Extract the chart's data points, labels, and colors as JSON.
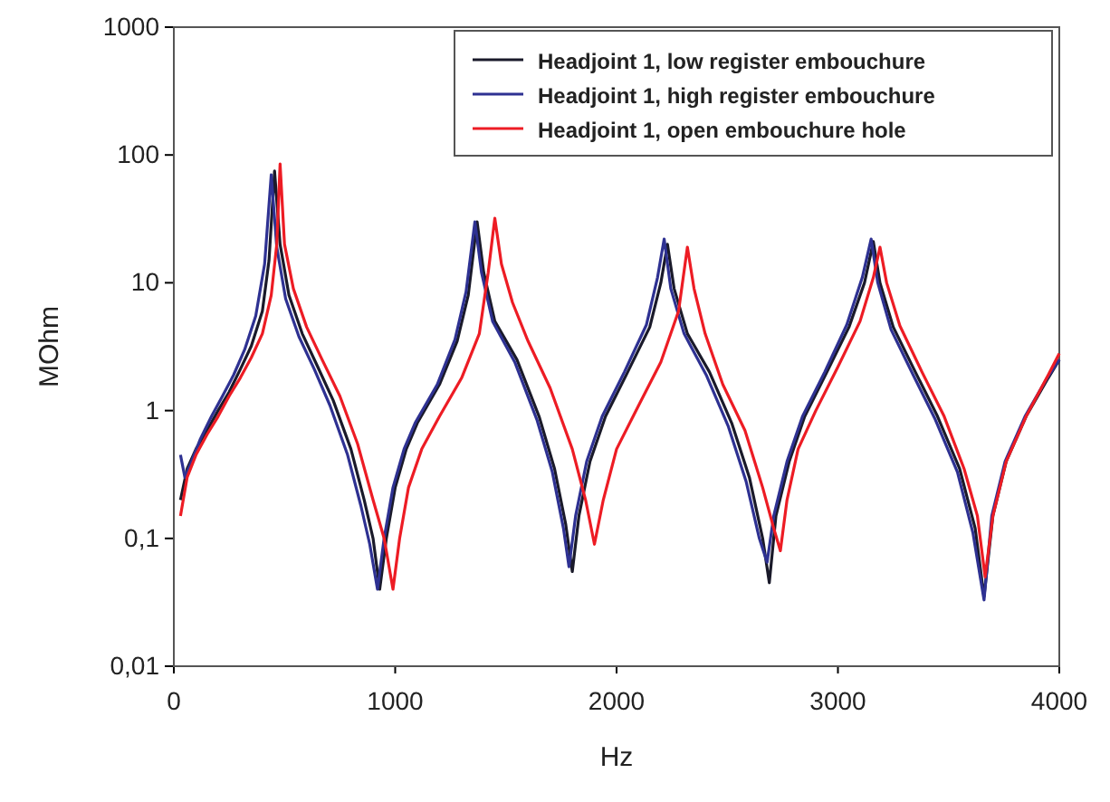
{
  "chart_data": {
    "type": "line",
    "xlabel": "Hz",
    "ylabel": "MOhm",
    "log": "y",
    "legend": "top right",
    "grid": false,
    "line_style": "solid",
    "marker": "none",
    "xlim": [
      0,
      4000
    ],
    "xticks": [
      0,
      1000,
      2000,
      3000,
      4000
    ],
    "ylim": [
      0.01,
      1000
    ],
    "yticks": [
      {
        "value": 0.01,
        "label": "0,01"
      },
      {
        "value": 0.1,
        "label": "0,1"
      },
      1,
      10,
      100,
      1000
    ],
    "series": [
      {
        "name": "Headjoint 1, low register embouchure",
        "color": "#1a1a2a",
        "x": [
          30,
          60,
          100,
          150,
          200,
          250,
          300,
          350,
          400,
          430,
          455,
          480,
          520,
          580,
          650,
          720,
          800,
          860,
          900,
          930,
          960,
          1000,
          1050,
          1100,
          1200,
          1280,
          1330,
          1370,
          1400,
          1450,
          1550,
          1650,
          1720,
          1770,
          1800,
          1830,
          1880,
          1950,
          2050,
          2150,
          2200,
          2230,
          2260,
          2320,
          2420,
          2520,
          2600,
          2660,
          2690,
          2720,
          2780,
          2850,
          2950,
          3050,
          3120,
          3160,
          3190,
          3250,
          3350,
          3450,
          3550,
          3620,
          3660,
          3700,
          3760,
          3850,
          3950,
          4000
        ],
        "values": [
          0.2,
          0.35,
          0.5,
          0.7,
          1.0,
          1.4,
          2.1,
          3.2,
          6,
          15,
          75,
          20,
          8,
          4,
          2.2,
          1.2,
          0.5,
          0.2,
          0.1,
          0.04,
          0.1,
          0.25,
          0.5,
          0.8,
          1.6,
          3.5,
          8,
          30,
          12,
          5,
          2.5,
          0.9,
          0.35,
          0.13,
          0.055,
          0.15,
          0.4,
          0.9,
          2,
          4.5,
          10,
          20,
          9,
          4,
          2,
          0.8,
          0.3,
          0.1,
          0.045,
          0.15,
          0.4,
          0.9,
          2,
          4.5,
          10,
          21,
          10,
          4.5,
          2,
          0.9,
          0.35,
          0.12,
          0.035,
          0.15,
          0.4,
          0.9,
          1.8,
          2.5
        ]
      },
      {
        "name": "Headjoint 1, high register embouchure",
        "color": "#2e3192",
        "x": [
          30,
          50,
          80,
          120,
          170,
          220,
          270,
          320,
          370,
          410,
          440,
          465,
          505,
          565,
          635,
          705,
          785,
          845,
          885,
          920,
          950,
          990,
          1040,
          1090,
          1190,
          1270,
          1320,
          1360,
          1390,
          1440,
          1540,
          1640,
          1710,
          1760,
          1785,
          1815,
          1865,
          1935,
          2035,
          2135,
          2185,
          2215,
          2245,
          2305,
          2405,
          2505,
          2585,
          2645,
          2680,
          2710,
          2770,
          2840,
          2940,
          3040,
          3110,
          3150,
          3180,
          3240,
          3340,
          3440,
          3540,
          3610,
          3660,
          3695,
          3755,
          3845,
          3945,
          4000
        ],
        "values": [
          0.45,
          0.3,
          0.4,
          0.6,
          0.9,
          1.3,
          1.9,
          3.0,
          5.5,
          14,
          70,
          19,
          7.5,
          3.8,
          2.1,
          1.1,
          0.45,
          0.18,
          0.09,
          0.04,
          0.1,
          0.25,
          0.5,
          0.8,
          1.6,
          3.6,
          8.5,
          30,
          12,
          5,
          2.4,
          0.85,
          0.33,
          0.12,
          0.06,
          0.15,
          0.4,
          0.9,
          2,
          4.7,
          11,
          22,
          9,
          4,
          1.9,
          0.75,
          0.28,
          0.1,
          0.065,
          0.15,
          0.4,
          0.9,
          2,
          4.7,
          11,
          22,
          10,
          4.3,
          1.9,
          0.85,
          0.33,
          0.11,
          0.033,
          0.15,
          0.4,
          0.9,
          1.8,
          2.5
        ]
      },
      {
        "name": "Headjoint 1, open embouchure hole",
        "color": "#ed1c24",
        "x": [
          30,
          60,
          100,
          150,
          200,
          250,
          300,
          350,
          400,
          440,
          465,
          480,
          500,
          540,
          600,
          670,
          750,
          830,
          900,
          950,
          990,
          1020,
          1060,
          1120,
          1200,
          1300,
          1380,
          1420,
          1450,
          1480,
          1530,
          1600,
          1700,
          1800,
          1860,
          1900,
          1940,
          2000,
          2100,
          2200,
          2280,
          2320,
          2350,
          2400,
          2480,
          2580,
          2660,
          2710,
          2740,
          2770,
          2820,
          2900,
          3000,
          3100,
          3160,
          3190,
          3220,
          3280,
          3380,
          3480,
          3570,
          3630,
          3665,
          3700,
          3760,
          3850,
          3950,
          4000
        ],
        "values": [
          0.15,
          0.3,
          0.45,
          0.65,
          0.9,
          1.3,
          1.8,
          2.6,
          4,
          8,
          20,
          85,
          20,
          9,
          4.5,
          2.5,
          1.3,
          0.55,
          0.2,
          0.1,
          0.04,
          0.1,
          0.25,
          0.5,
          0.9,
          1.8,
          4,
          12,
          32,
          14,
          7,
          3.5,
          1.5,
          0.5,
          0.2,
          0.09,
          0.2,
          0.5,
          1.1,
          2.4,
          6,
          19,
          9,
          4,
          1.6,
          0.7,
          0.25,
          0.12,
          0.08,
          0.2,
          0.5,
          1,
          2.2,
          5,
          11,
          19,
          10,
          4.6,
          2,
          0.9,
          0.35,
          0.15,
          0.05,
          0.15,
          0.4,
          0.9,
          1.9,
          2.8
        ]
      }
    ]
  }
}
